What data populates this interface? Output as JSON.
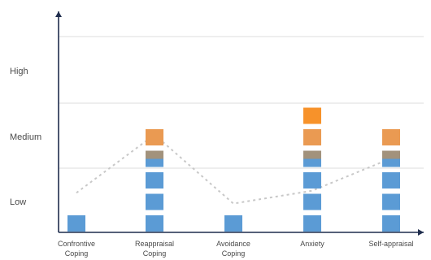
{
  "chart_data": {
    "type": "bar",
    "categories": [
      [
        "Confrontive",
        "Coping"
      ],
      [
        "Reappraisal",
        "Coping"
      ],
      [
        "Avoidance",
        "Coping"
      ],
      [
        "Anxiety"
      ],
      [
        "Self-appraisal"
      ]
    ],
    "y_levels": [
      "Low",
      "Medium",
      "High"
    ],
    "stacks": [
      [
        "low"
      ],
      [
        "low",
        "low",
        "low",
        "mixed",
        "medium"
      ],
      [
        "low"
      ],
      [
        "low",
        "low",
        "low",
        "mixed",
        "medium",
        "medium"
      ],
      [
        "low",
        "low",
        "low",
        "mixed",
        "medium"
      ]
    ],
    "trend_line": [
      1.8,
      4.5,
      1.3,
      1.9,
      3.4
    ],
    "grid": true,
    "legend": "none",
    "colors": {
      "low": "#5b9bd5",
      "mixed": "#a2927c",
      "medium": "#ea9a52",
      "medium_top": "#f7922a",
      "trend": "#c8c8c8",
      "axis": "#1f2d4d",
      "grid": "#dcdcdc"
    }
  }
}
